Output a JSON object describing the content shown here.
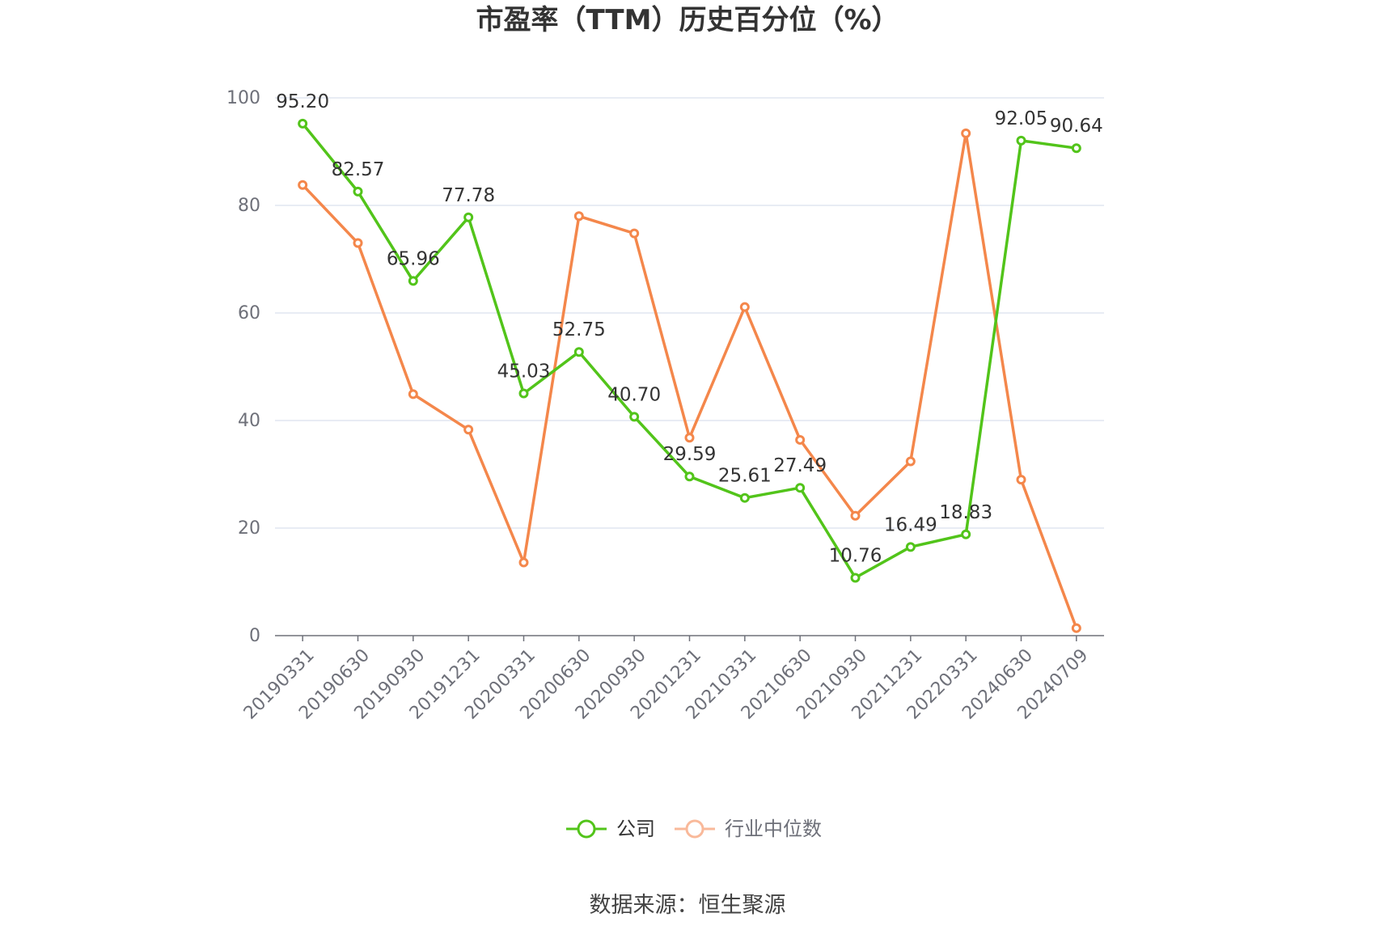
{
  "chart_data": {
    "type": "line",
    "title": "市盈率（TTM）历史百分位（%）",
    "categories": [
      "20190331",
      "20190630",
      "20190930",
      "20191231",
      "20200331",
      "20200630",
      "20200930",
      "20201231",
      "20210331",
      "20210630",
      "20210930",
      "20211231",
      "20220331",
      "20240630",
      "20240709"
    ],
    "ylim": [
      0,
      100
    ],
    "yticks": [
      0,
      20,
      40,
      60,
      80,
      100
    ],
    "grid": true,
    "legend_position": "bottom-center",
    "series": [
      {
        "name": "公司",
        "color": "#52c41a",
        "values": [
          95.2,
          82.57,
          65.96,
          77.78,
          45.03,
          52.75,
          40.7,
          29.59,
          25.61,
          27.49,
          10.76,
          16.49,
          18.83,
          92.05,
          90.64
        ],
        "labels": [
          "95.20",
          "82.57",
          "65.96",
          "77.78",
          "45.03",
          "52.75",
          "40.70",
          "29.59",
          "25.61",
          "27.49",
          "10.76",
          "16.49",
          "18.83",
          "92.05",
          "90.64"
        ]
      },
      {
        "name": "行业中位数",
        "color": "#f4874b",
        "legend_color": "#f9b99a",
        "values": [
          83.8,
          73.0,
          44.9,
          38.3,
          13.6,
          78.0,
          74.8,
          36.8,
          61.1,
          36.4,
          22.3,
          32.4,
          93.4,
          29.0,
          1.4
        ]
      }
    ]
  },
  "source": "数据来源：恒生聚源"
}
